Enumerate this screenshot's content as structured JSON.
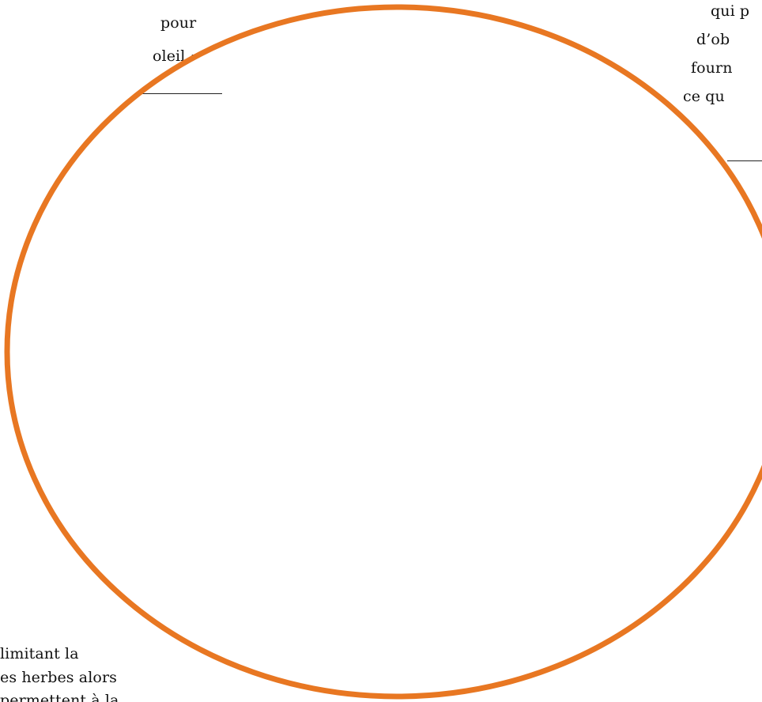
{
  "left_fragment": {
    "line_1": "pour",
    "line_2": "oleil :"
  },
  "right_fragment": {
    "line_1": "qui p",
    "line_2": "d’ob",
    "line_3": "fourn",
    "line_4": "ce qu"
  },
  "bottom_left_fragment": {
    "line_1": "limitant la",
    "line_2": "es herbes alors",
    "line_3": "permettent à la"
  },
  "diagram": {
    "circle_color": "#E87722"
  }
}
